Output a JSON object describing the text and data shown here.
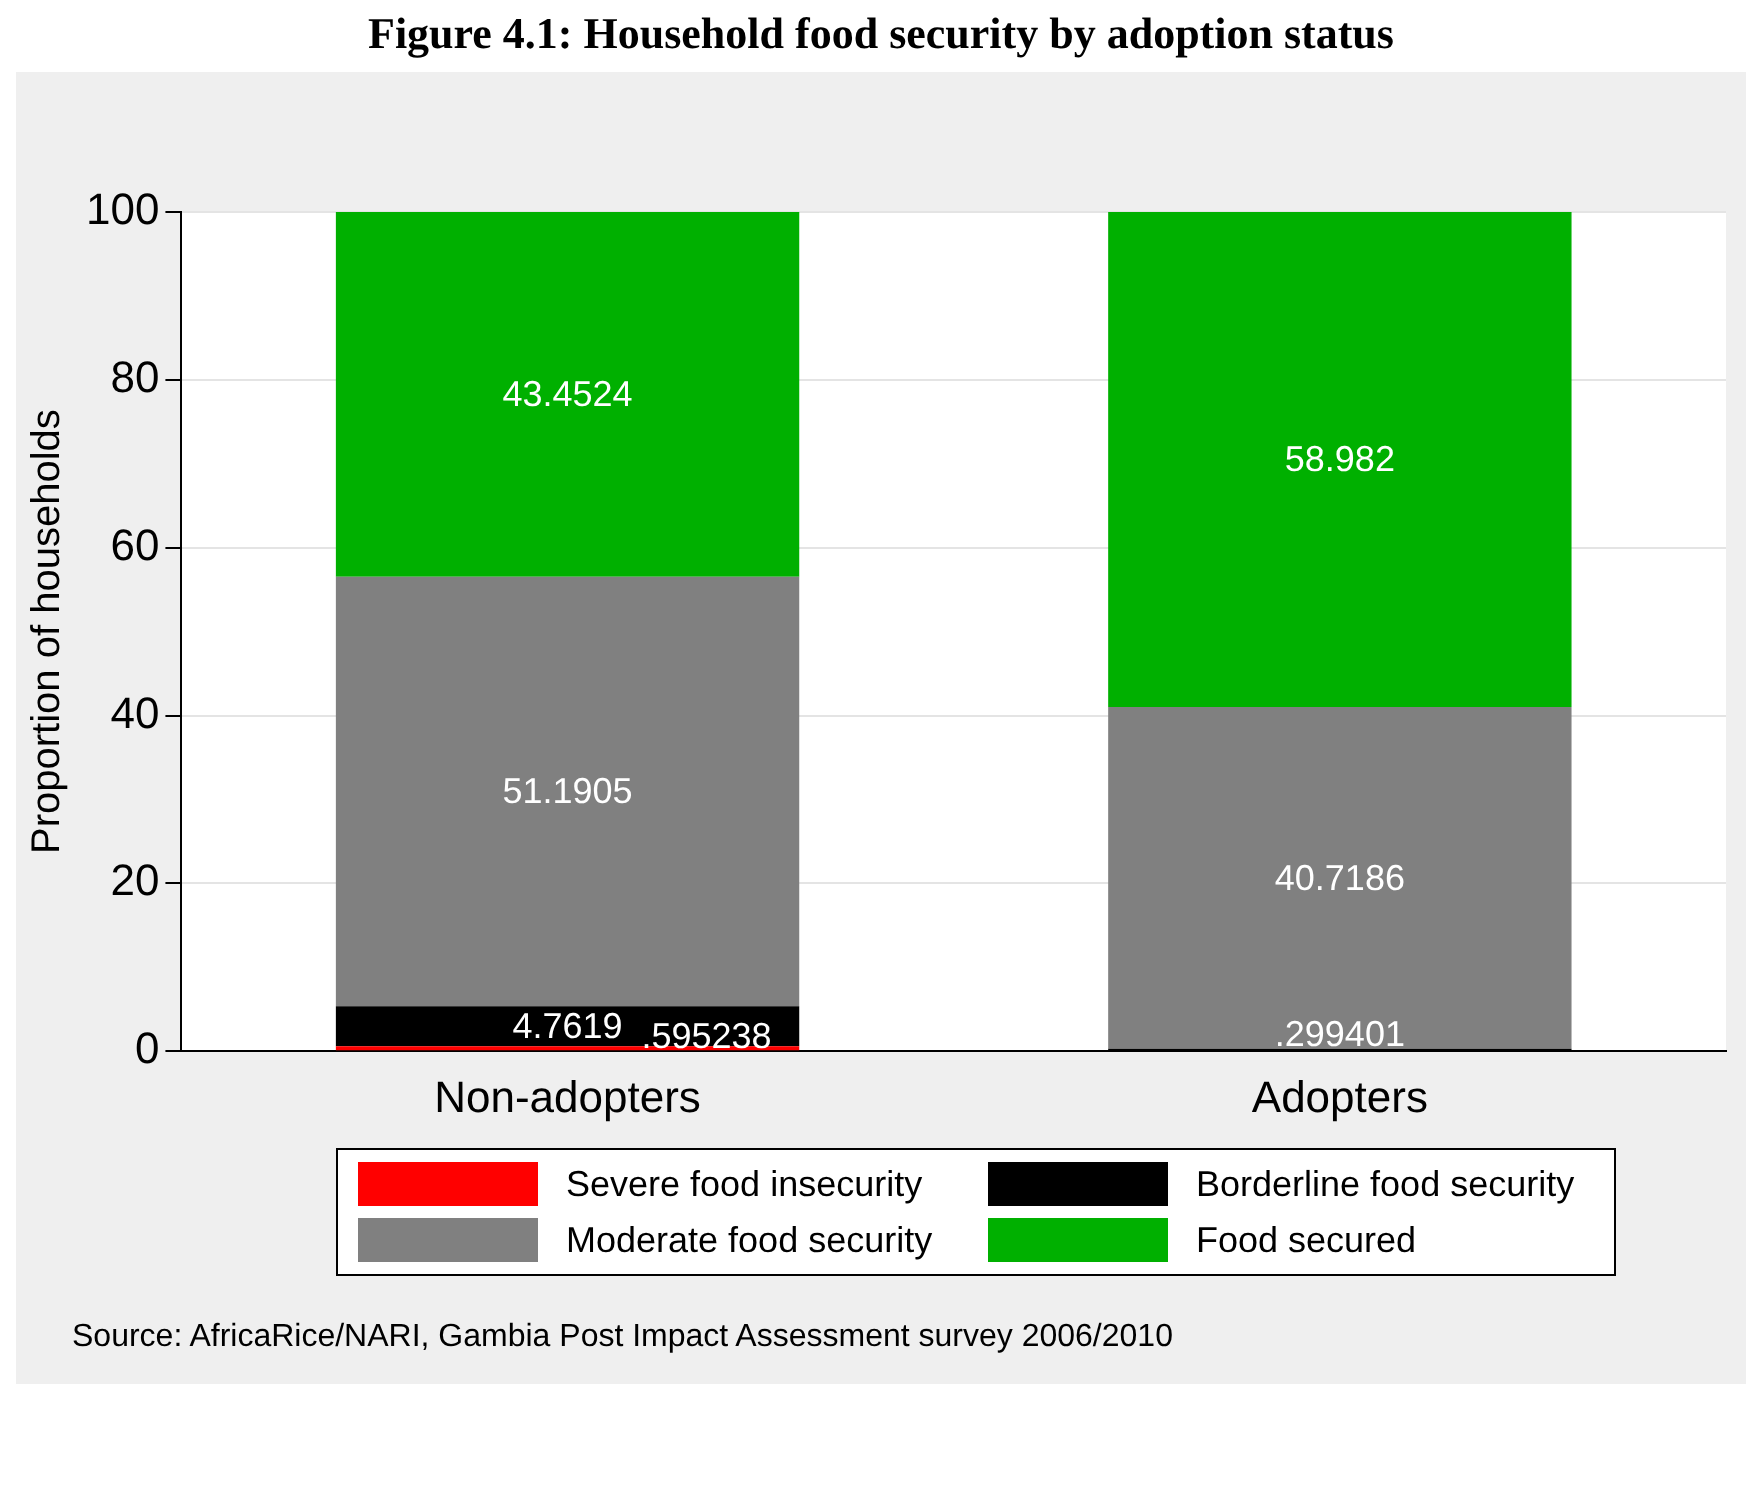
{
  "chart_data": {
    "type": "bar",
    "title": "Figure 4.1: Household food security by adoption status",
    "ylabel": "Proportion of households",
    "categories": [
      "Non-adopters",
      "Adopters"
    ],
    "stacked": true,
    "ylim": [
      0,
      100
    ],
    "yticks": [
      0,
      20,
      40,
      60,
      80,
      100
    ],
    "grid": "y",
    "legend": "bottom",
    "series": [
      {
        "name": "Severe food insecurity",
        "color": "#ff0000",
        "values": [
          0.595238,
          0
        ],
        "value_labels": [
          ".595238",
          null
        ]
      },
      {
        "name": "Borderline food security",
        "color": "#000000",
        "values": [
          4.7619,
          0.299401
        ],
        "value_labels": [
          "4.7619",
          ".299401"
        ]
      },
      {
        "name": "Moderate food security",
        "color": "#808080",
        "values": [
          51.1905,
          40.7186
        ],
        "value_labels": [
          "51.1905",
          "40.7186"
        ]
      },
      {
        "name": "Food secured",
        "color": "#00b000",
        "values": [
          43.4524,
          58.982
        ],
        "value_labels": [
          "43.4524",
          "58.982"
        ]
      }
    ],
    "annotations": [
      "Source: AfricaRice/NARI, Gambia Post Impact Assessment survey 2006/2010"
    ]
  }
}
